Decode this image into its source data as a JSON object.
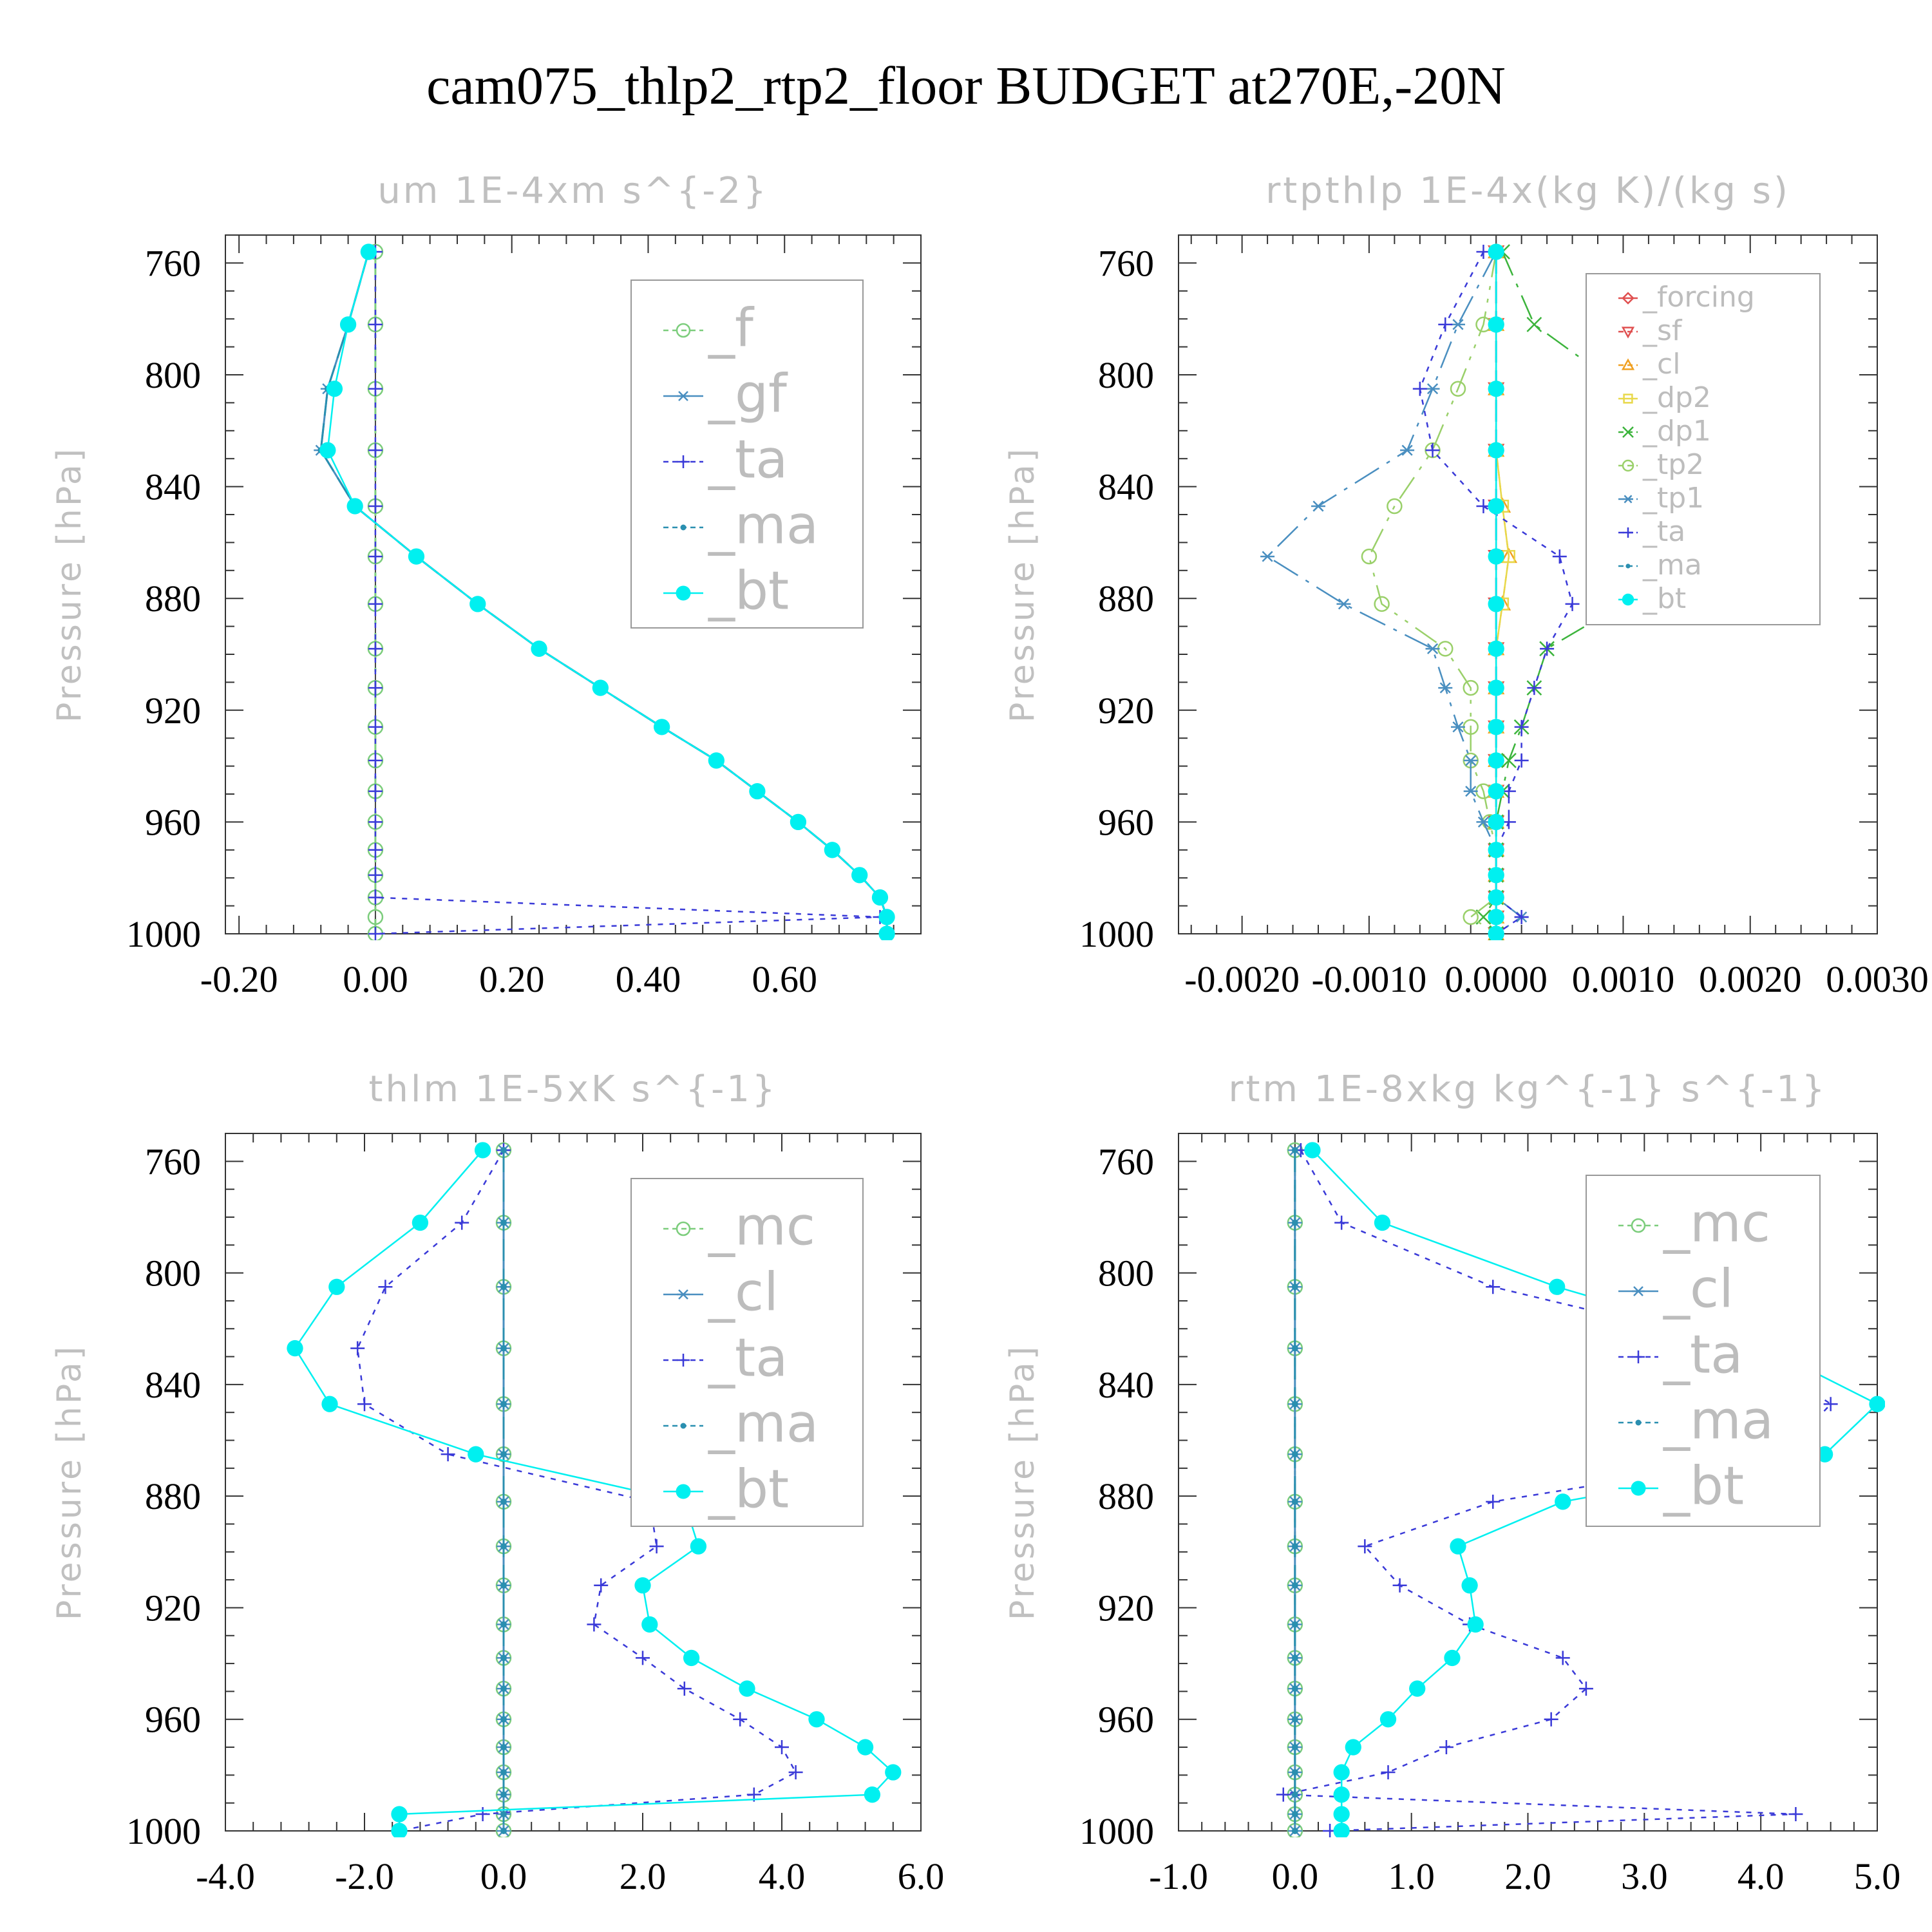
{
  "title": "cam075_thlp2_rtp2_floor  BUDGET at270E,-20N",
  "colors": {
    "green": "#7ccd7c",
    "steel": "#4a8fc0",
    "blue": "#3a3ad8",
    "teal": "#2a8fb0",
    "cyan": "#00f0f0",
    "red": "#e05050",
    "orange": "#f0a020",
    "yellow": "#e8d84a",
    "dpgreen": "#3cb43c",
    "ltgreen": "#9ad06a"
  },
  "chart_data": [
    {
      "type": "line",
      "title": "um   1E-4xm s^{-2}",
      "ylabel": "Pressure [hPa]",
      "ylim": [
        1000,
        750
      ],
      "xlim": [
        -0.22,
        0.8
      ],
      "yticks": [
        760,
        800,
        840,
        880,
        920,
        960,
        1000
      ],
      "xticks": [
        -0.2,
        0.0,
        0.2,
        0.4,
        0.6
      ],
      "xtick_labels": [
        "-0.20",
        "0.00",
        "0.20",
        "0.40",
        "0.60"
      ],
      "y": [
        756,
        782,
        805,
        827,
        847,
        865,
        882,
        898,
        912,
        926,
        938,
        949,
        960,
        970,
        979,
        987,
        994,
        1000
      ],
      "series": [
        {
          "name": "_f",
          "values": [
            0,
            0,
            0,
            0,
            0,
            0,
            0,
            0,
            0,
            0,
            0,
            0,
            0,
            0,
            0,
            0,
            0,
            0
          ]
        },
        {
          "name": "_gf",
          "values": [
            -0.01,
            -0.04,
            -0.07,
            -0.08,
            -0.03,
            0.06,
            0.15,
            0.24,
            0.33,
            0.42,
            0.5,
            0.56,
            0.62,
            0.67,
            0.71,
            0.74,
            0.75,
            0.75
          ]
        },
        {
          "name": "_ta",
          "values": [
            0,
            0,
            0,
            0,
            0,
            0,
            0,
            0,
            0,
            0,
            0,
            0,
            0,
            0,
            0,
            0,
            0.74,
            0.0
          ]
        },
        {
          "name": "_ma",
          "values": [
            -0.01,
            -0.04,
            -0.07,
            -0.08,
            -0.03,
            0.06,
            0.15,
            0.24,
            0.33,
            0.42,
            0.5,
            0.56,
            0.62,
            0.67,
            0.71,
            0.74,
            0.75,
            0.75
          ]
        },
        {
          "name": "_bt",
          "values": [
            -0.01,
            -0.04,
            -0.06,
            -0.07,
            -0.03,
            0.06,
            0.15,
            0.24,
            0.33,
            0.42,
            0.5,
            0.56,
            0.62,
            0.67,
            0.71,
            0.74,
            0.75,
            0.75
          ]
        }
      ]
    },
    {
      "type": "line",
      "title": "rtpthlp   1E-4x(kg K)/(kg s)",
      "ylabel": "Pressure [hPa]",
      "ylim": [
        1000,
        750
      ],
      "xlim": [
        -0.0025,
        0.003
      ],
      "yticks": [
        760,
        800,
        840,
        880,
        920,
        960,
        1000
      ],
      "xticks": [
        -0.002,
        -0.001,
        0.0,
        0.001,
        0.002,
        0.003
      ],
      "xtick_labels": [
        "-0.0020",
        "-0.0010",
        "0.0000",
        "0.0010",
        "0.0020",
        "0.0030"
      ],
      "y": [
        756,
        782,
        805,
        827,
        847,
        865,
        882,
        898,
        912,
        926,
        938,
        949,
        960,
        970,
        979,
        987,
        994,
        1000
      ],
      "series": [
        {
          "name": "_forcing",
          "values": [
            0,
            0,
            0,
            0,
            0,
            0,
            0,
            0,
            0,
            0,
            0,
            0,
            0,
            0,
            0,
            0,
            0,
            0
          ]
        },
        {
          "name": "_sf",
          "values": [
            0,
            0,
            0,
            0,
            0,
            0,
            0,
            0,
            0,
            0,
            0,
            0,
            0,
            0,
            0,
            0,
            0,
            0
          ]
        },
        {
          "name": "_cl",
          "values": [
            0,
            0,
            0,
            0,
            5e-05,
            0.0001,
            5e-05,
            0,
            0,
            0,
            0,
            0,
            0,
            0,
            0,
            0,
            0,
            0
          ]
        },
        {
          "name": "_dp2",
          "values": [
            0,
            0,
            0,
            0,
            5e-05,
            0.0001,
            5e-05,
            0,
            0,
            0,
            0,
            0,
            0,
            0,
            0,
            0,
            0,
            0
          ]
        },
        {
          "name": "_dp1",
          "values": [
            5e-05,
            0.0003,
            0.001,
            0.0016,
            0.002,
            0.0017,
            0.001,
            0.0004,
            0.0003,
            0.0002,
            0.0001,
            5e-05,
            0,
            0,
            0,
            0,
            -0.0001,
            0
          ]
        },
        {
          "name": "_tp2",
          "values": [
            0,
            -0.0001,
            -0.0003,
            -0.0005,
            -0.0008,
            -0.001,
            -0.0009,
            -0.0004,
            -0.0002,
            -0.0002,
            -0.0002,
            -0.0001,
            -5e-05,
            0,
            0,
            0,
            -0.0002,
            0
          ]
        },
        {
          "name": "_tp1",
          "values": [
            0,
            -0.0003,
            -0.0005,
            -0.0007,
            -0.0014,
            -0.0018,
            -0.0012,
            -0.0005,
            -0.0004,
            -0.0003,
            -0.0002,
            -0.0002,
            -0.0001,
            0,
            0,
            0,
            0.0002,
            0
          ]
        },
        {
          "name": "_ta",
          "values": [
            -0.0001,
            -0.0004,
            -0.0006,
            -0.0005,
            -0.0001,
            0.0005,
            0.0006,
            0.0004,
            0.0003,
            0.0002,
            0.0002,
            0.0001,
            0.0001,
            0,
            0,
            0,
            0.0002,
            0
          ]
        },
        {
          "name": "_ma",
          "values": [
            0,
            0,
            0,
            0,
            0,
            0,
            0,
            0,
            0,
            0,
            0,
            0,
            0,
            0,
            0,
            0,
            0,
            0
          ]
        },
        {
          "name": "_bt",
          "values": [
            0,
            0,
            0,
            0,
            0,
            0,
            0,
            0,
            0,
            0,
            0,
            0,
            0,
            0,
            0,
            0,
            0,
            0
          ]
        }
      ]
    },
    {
      "type": "line",
      "title": "thlm   1E-5xK s^{-1}",
      "ylabel": "Pressure [hPa]",
      "ylim": [
        1000,
        750
      ],
      "xlim": [
        -4.0,
        6.0
      ],
      "yticks": [
        760,
        800,
        840,
        880,
        920,
        960,
        1000
      ],
      "xticks": [
        -4,
        -2,
        0,
        2,
        4,
        6
      ],
      "xtick_labels": [
        "-4.0",
        "-2.0",
        "0.0",
        "2.0",
        "4.0",
        "6.0"
      ],
      "y": [
        756,
        782,
        805,
        827,
        847,
        865,
        882,
        898,
        912,
        926,
        938,
        949,
        960,
        970,
        979,
        987,
        994,
        1000
      ],
      "series": [
        {
          "name": "_mc",
          "values": [
            0,
            0,
            0,
            0,
            0,
            0,
            0,
            0,
            0,
            0,
            0,
            0,
            0,
            0,
            0,
            0,
            0,
            0
          ]
        },
        {
          "name": "_cl",
          "values": [
            0,
            0,
            0,
            0,
            0,
            0,
            0,
            0,
            0,
            0,
            0,
            0,
            0,
            0,
            0,
            0,
            0,
            0
          ]
        },
        {
          "name": "_ta",
          "values": [
            0,
            -0.6,
            -1.7,
            -2.1,
            -2.0,
            -0.8,
            2.1,
            2.2,
            1.4,
            1.3,
            2.0,
            2.6,
            3.4,
            4.0,
            4.2,
            3.6,
            -0.3,
            -1.5
          ]
        },
        {
          "name": "_ma",
          "values": [
            0,
            0,
            0,
            0,
            0,
            0,
            0,
            0,
            0,
            0,
            0,
            0,
            0,
            0,
            0,
            0,
            0,
            0
          ]
        },
        {
          "name": "_bt",
          "values": [
            -0.3,
            -1.2,
            -2.4,
            -3.0,
            -2.5,
            -0.4,
            2.6,
            2.8,
            2.0,
            2.1,
            2.7,
            3.5,
            4.5,
            5.2,
            5.6,
            5.3,
            -1.5,
            -1.5
          ]
        }
      ]
    },
    {
      "type": "line",
      "title": "rtm   1E-8xkg kg^{-1} s^{-1}",
      "ylabel": "Pressure [hPa]",
      "ylim": [
        1000,
        750
      ],
      "xlim": [
        -1.0,
        5.0
      ],
      "yticks": [
        760,
        800,
        840,
        880,
        920,
        960,
        1000
      ],
      "xticks": [
        -1,
        0,
        1,
        2,
        3,
        4,
        5
      ],
      "xtick_labels": [
        "-1.0",
        "0.0",
        "1.0",
        "2.0",
        "3.0",
        "4.0",
        "5.0"
      ],
      "y": [
        756,
        782,
        805,
        827,
        847,
        865,
        882,
        898,
        912,
        926,
        938,
        949,
        960,
        970,
        979,
        987,
        994,
        1000
      ],
      "series": [
        {
          "name": "_mc",
          "values": [
            0,
            0,
            0,
            0,
            0,
            0,
            0,
            0,
            0,
            0,
            0,
            0,
            0,
            0,
            0,
            0,
            0,
            0
          ]
        },
        {
          "name": "_cl",
          "values": [
            0,
            0,
            0,
            0,
            0,
            0,
            0,
            0,
            0,
            0,
            0,
            0,
            0,
            0,
            0,
            0,
            0,
            0
          ]
        },
        {
          "name": "_ta",
          "values": [
            0.05,
            0.4,
            1.7,
            3.9,
            4.6,
            4.2,
            1.7,
            0.6,
            0.9,
            1.5,
            2.3,
            2.5,
            2.2,
            1.3,
            0.8,
            -0.1,
            4.3,
            0.3
          ]
        },
        {
          "name": "_ma",
          "values": [
            0,
            0,
            0,
            0,
            0,
            0,
            0,
            0,
            0,
            0,
            0,
            0,
            0,
            0,
            0,
            0,
            0,
            0
          ]
        },
        {
          "name": "_bt",
          "values": [
            0.15,
            0.75,
            2.25,
            4.05,
            5.0,
            4.55,
            2.3,
            1.4,
            1.5,
            1.55,
            1.35,
            1.05,
            0.8,
            0.5,
            0.4,
            0.4,
            0.4,
            0.4
          ]
        }
      ]
    }
  ]
}
